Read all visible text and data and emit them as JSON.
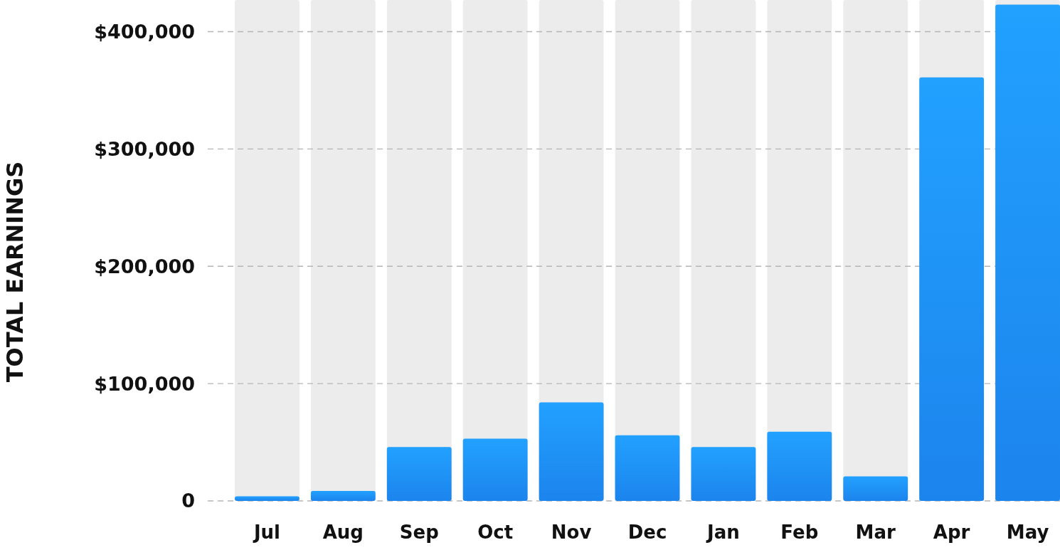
{
  "chart_data": {
    "type": "bar",
    "ylabel": "TOTAL EARNINGS",
    "categories": [
      "Jul",
      "Aug",
      "Sep",
      "Oct",
      "Nov",
      "Dec",
      "Jan",
      "Feb",
      "Mar",
      "Apr",
      "May"
    ],
    "values": [
      4000,
      8500,
      46000,
      53000,
      84000,
      56000,
      46000,
      59000,
      21000,
      361000,
      423000
    ],
    "color": "#1e8eff",
    "ylim": [
      0,
      427000
    ],
    "yticks": [
      {
        "value": 0,
        "label": "0"
      },
      {
        "value": 100000,
        "label": "$100,000"
      },
      {
        "value": 200000,
        "label": "$200,000"
      },
      {
        "value": 300000,
        "label": "$300,000"
      },
      {
        "value": 400000,
        "label": "$400,000"
      }
    ],
    "grid": "y"
  }
}
